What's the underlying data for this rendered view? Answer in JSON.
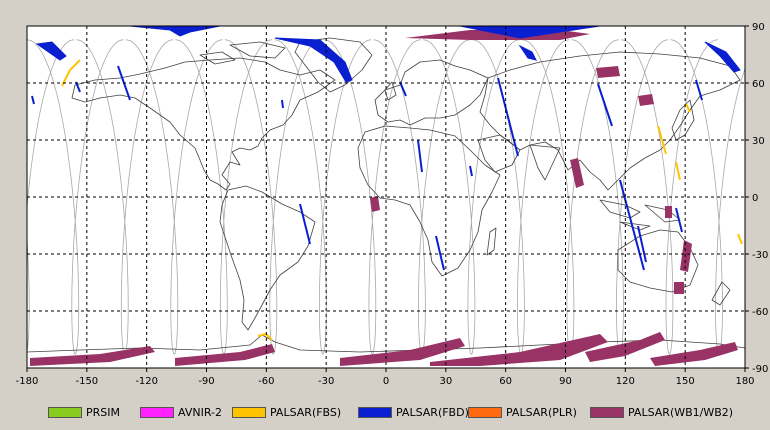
{
  "map": {
    "lon_ticks": [
      "-180",
      "-150",
      "-120",
      "-90",
      "-60",
      "-30",
      "0",
      "30",
      "60",
      "90",
      "120",
      "150",
      "180"
    ],
    "lat_ticks": [
      "90",
      "60",
      "30",
      "0",
      "-30",
      "-60",
      "-90"
    ],
    "colors": {
      "ocean": "#ffffff",
      "coast": "#404040",
      "orbit": "#a8a8a8",
      "grid": "#000000"
    }
  },
  "legend": [
    {
      "label": "PRSIM",
      "color": "#88cc22"
    },
    {
      "label": "AVNIR-2",
      "color": "#ff22ff"
    },
    {
      "label": "PALSAR(FBS)",
      "color": "#ffc400"
    },
    {
      "label": "PALSAR(FBD)",
      "color": "#0a1fd0"
    },
    {
      "label": "PALSAR(PLR)",
      "color": "#ff6a10"
    },
    {
      "label": "PALSAR(WB1/WB2)",
      "color": "#993366"
    }
  ]
}
